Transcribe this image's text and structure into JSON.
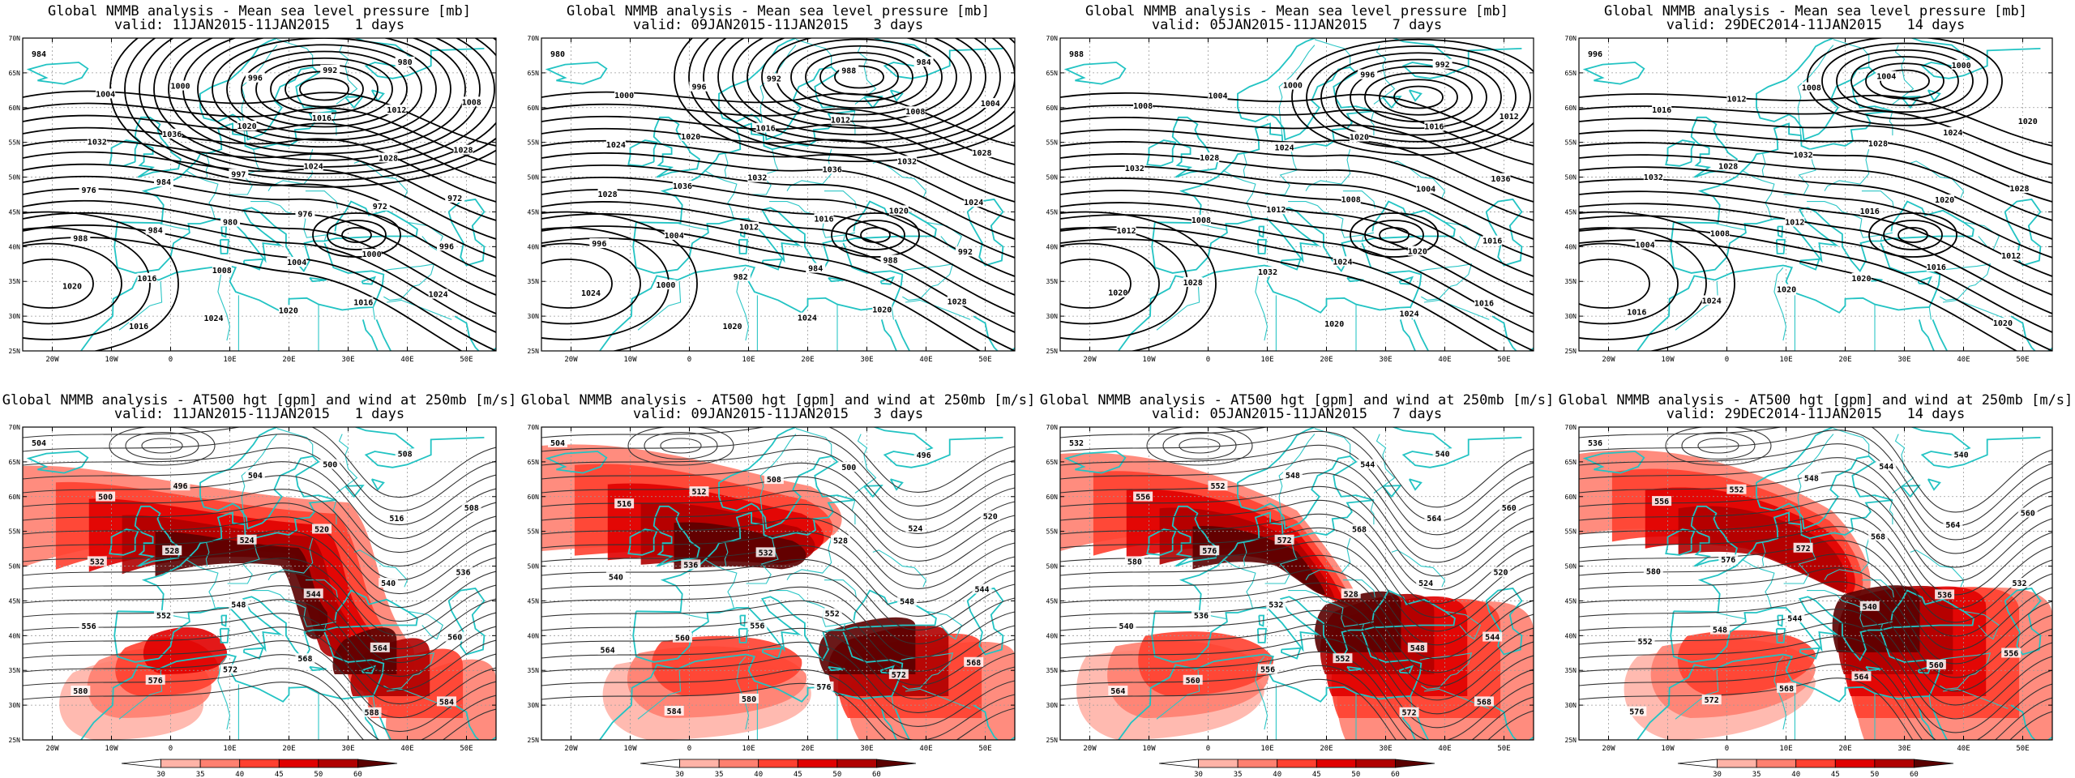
{
  "rows": [
    {
      "panels": [
        {
          "title": "Global NMMB analysis - Mean sea level pressure [mb]",
          "valid": "valid: 11JAN2015-11JAN2015   1 days"
        },
        {
          "title": "Global NMMB analysis - Mean sea level pressure [mb]",
          "valid": "valid: 09JAN2015-11JAN2015   3 days"
        },
        {
          "title": "Global NMMB analysis - Mean sea level pressure [mb]",
          "valid": "valid: 05JAN2015-11JAN2015   7 days"
        },
        {
          "title": "Global NMMB analysis - Mean sea level pressure [mb]",
          "valid": "valid: 29DEC2014-11JAN2015   14 days"
        }
      ]
    },
    {
      "panels": [
        {
          "title": "Global NMMB analysis - AT500 hgt [gpm] and wind at 250mb [m/s]",
          "valid": "valid: 11JAN2015-11JAN2015   1 days"
        },
        {
          "title": "Global NMMB analysis - AT500 hgt [gpm] and wind at 250mb [m/s]",
          "valid": "valid: 09JAN2015-11JAN2015   3 days"
        },
        {
          "title": "Global NMMB analysis - AT500 hgt [gpm] and wind at 250mb [m/s]",
          "valid": "valid: 05JAN2015-11JAN2015   7 days"
        },
        {
          "title": "Global NMMB analysis - AT500 hgt [gpm] and wind at 250mb [m/s]",
          "valid": "valid: 29DEC2014-11JAN2015   14 days"
        }
      ]
    }
  ],
  "axes": {
    "lat_labels": [
      "70N",
      "65N",
      "60N",
      "55N",
      "50N",
      "45N",
      "40N",
      "35N",
      "30N",
      "25N"
    ],
    "lon_labels": [
      "20W",
      "10W",
      "0",
      "10E",
      "20E",
      "30E",
      "40E",
      "50E"
    ]
  },
  "colorbar": {
    "ticks": [
      "30",
      "35",
      "40",
      "45",
      "50",
      "60"
    ],
    "colors": [
      "#ffe0dc",
      "#ffb3a7",
      "#ff8070",
      "#ff4030",
      "#e00000",
      "#b00000",
      "#5a0000"
    ]
  },
  "mslp_labels": [
    [
      "984",
      "980",
      "992",
      "996",
      "1000",
      "1004",
      "1008",
      "1012",
      "1016",
      "1020",
      "1036",
      "1032",
      "1028",
      "1028",
      "1024",
      "997",
      "984",
      "976",
      "972",
      "972",
      "976",
      "980",
      "984",
      "988",
      "996",
      "1000",
      "1004",
      "1008",
      "1016",
      "1020",
      "1024",
      "1016",
      "1020",
      "1024",
      "1016"
    ],
    [
      "980",
      "984",
      "988",
      "992",
      "996",
      "1000",
      "1004",
      "1008",
      "1012",
      "1016",
      "1020",
      "1024",
      "1028",
      "1032",
      "1036",
      "1032",
      "1036",
      "1028",
      "1024",
      "1020",
      "1016",
      "1012",
      "1004",
      "996",
      "992",
      "988",
      "984",
      "982",
      "1000",
      "1024",
      "1028",
      "1020",
      "1024",
      "1020"
    ],
    [
      "988",
      "992",
      "996",
      "1000",
      "1004",
      "1008",
      "1012",
      "1016",
      "1020",
      "1024",
      "1028",
      "1032",
      "1036",
      "1004",
      "1008",
      "1012",
      "1008",
      "1012",
      "1016",
      "1020",
      "1024",
      "1032",
      "1028",
      "1020",
      "1016",
      "1024",
      "1020"
    ],
    [
      "996",
      "1000",
      "1004",
      "1008",
      "1012",
      "1016",
      "1020",
      "1024",
      "1028",
      "1032",
      "1028",
      "1032",
      "1028",
      "1020",
      "1016",
      "1012",
      "1008",
      "1004",
      "1012",
      "1016",
      "1020",
      "1020",
      "1024",
      "1016",
      "1020"
    ]
  ],
  "z500_labels": [
    [
      "504",
      "508",
      "500",
      "504",
      "496",
      "500",
      "508",
      "516",
      "520",
      "524",
      "528",
      "532",
      "536",
      "540",
      "544",
      "548",
      "552",
      "556",
      "560",
      "564",
      "568",
      "572",
      "576",
      "580",
      "584",
      "588"
    ],
    [
      "504",
      "496",
      "500",
      "508",
      "512",
      "516",
      "520",
      "524",
      "528",
      "532",
      "536",
      "540",
      "544",
      "548",
      "552",
      "556",
      "560",
      "564",
      "568",
      "572",
      "576",
      "580",
      "584"
    ],
    [
      "532",
      "540",
      "544",
      "548",
      "552",
      "556",
      "560",
      "564",
      "568",
      "572",
      "576",
      "580",
      "520",
      "524",
      "528",
      "532",
      "536",
      "540",
      "544",
      "548",
      "552",
      "556",
      "560",
      "564",
      "568",
      "572"
    ],
    [
      "536",
      "540",
      "544",
      "548",
      "552",
      "556",
      "560",
      "564",
      "568",
      "572",
      "576",
      "580",
      "532",
      "536",
      "540",
      "544",
      "548",
      "552",
      "556",
      "560",
      "564",
      "568",
      "572",
      "576"
    ]
  ]
}
